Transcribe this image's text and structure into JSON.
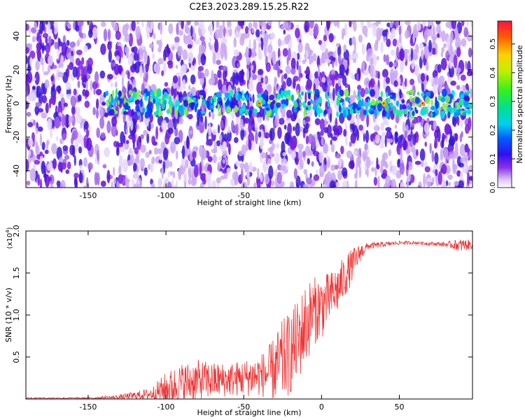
{
  "figure": {
    "title": "C2E3.2023.289.15.25.R22"
  },
  "chart_data": [
    {
      "type": "heatmap",
      "xlabel": "Height of straight line (km)",
      "ylabel": "Frequency (Hz)",
      "xlim": [
        -190,
        97
      ],
      "ylim": [
        -50,
        49
      ],
      "x_ticks": [
        -150,
        -100,
        -50,
        0,
        50
      ],
      "y_ticks": [
        -40,
        -20,
        0,
        20,
        40
      ],
      "colorbar": {
        "label": "Normalized spectral amplitude",
        "range": [
          0,
          0.58
        ],
        "ticks": [
          0.0,
          0.1,
          0.2,
          0.3,
          0.4,
          0.5
        ]
      }
    },
    {
      "type": "line",
      "xlabel": "Height of straight line (km)",
      "ylabel": "SNR (10 * v/v)",
      "y_exponent_label": "(x10",
      "y_exponent_sup": "4",
      "y_exponent_close": ")",
      "xlim": [
        -190,
        97
      ],
      "ylim": [
        0,
        2.0
      ],
      "x_ticks": [
        -150,
        -100,
        -50,
        0,
        50
      ],
      "y_ticks": [
        0.5,
        1.0,
        1.5,
        2.0
      ],
      "color": "#ee3333",
      "envelope": {
        "x": [
          -190,
          -150,
          -130,
          -120,
          -110,
          -100,
          -90,
          -80,
          -70,
          -60,
          -50,
          -40,
          -35,
          -30,
          -25,
          -20,
          -15,
          -10,
          -5,
          0,
          5,
          10,
          15,
          20,
          25,
          30,
          40,
          50,
          60,
          70,
          80,
          90,
          97
        ],
        "base": [
          0.01,
          0.01,
          0.02,
          0.04,
          0.06,
          0.12,
          0.18,
          0.22,
          0.22,
          0.23,
          0.25,
          0.28,
          0.3,
          0.36,
          0.45,
          0.55,
          0.7,
          0.9,
          1.05,
          1.1,
          1.2,
          1.3,
          1.45,
          1.6,
          1.75,
          1.82,
          1.84,
          1.86,
          1.86,
          1.85,
          1.84,
          1.83,
          1.84
        ],
        "noise": [
          0.01,
          0.01,
          0.03,
          0.05,
          0.07,
          0.2,
          0.25,
          0.25,
          0.22,
          0.2,
          0.22,
          0.25,
          0.3,
          0.4,
          0.5,
          0.5,
          0.5,
          0.5,
          0.4,
          0.4,
          0.3,
          0.3,
          0.25,
          0.2,
          0.1,
          0.04,
          0.03,
          0.02,
          0.02,
          0.02,
          0.03,
          0.08,
          0.05
        ]
      }
    }
  ]
}
